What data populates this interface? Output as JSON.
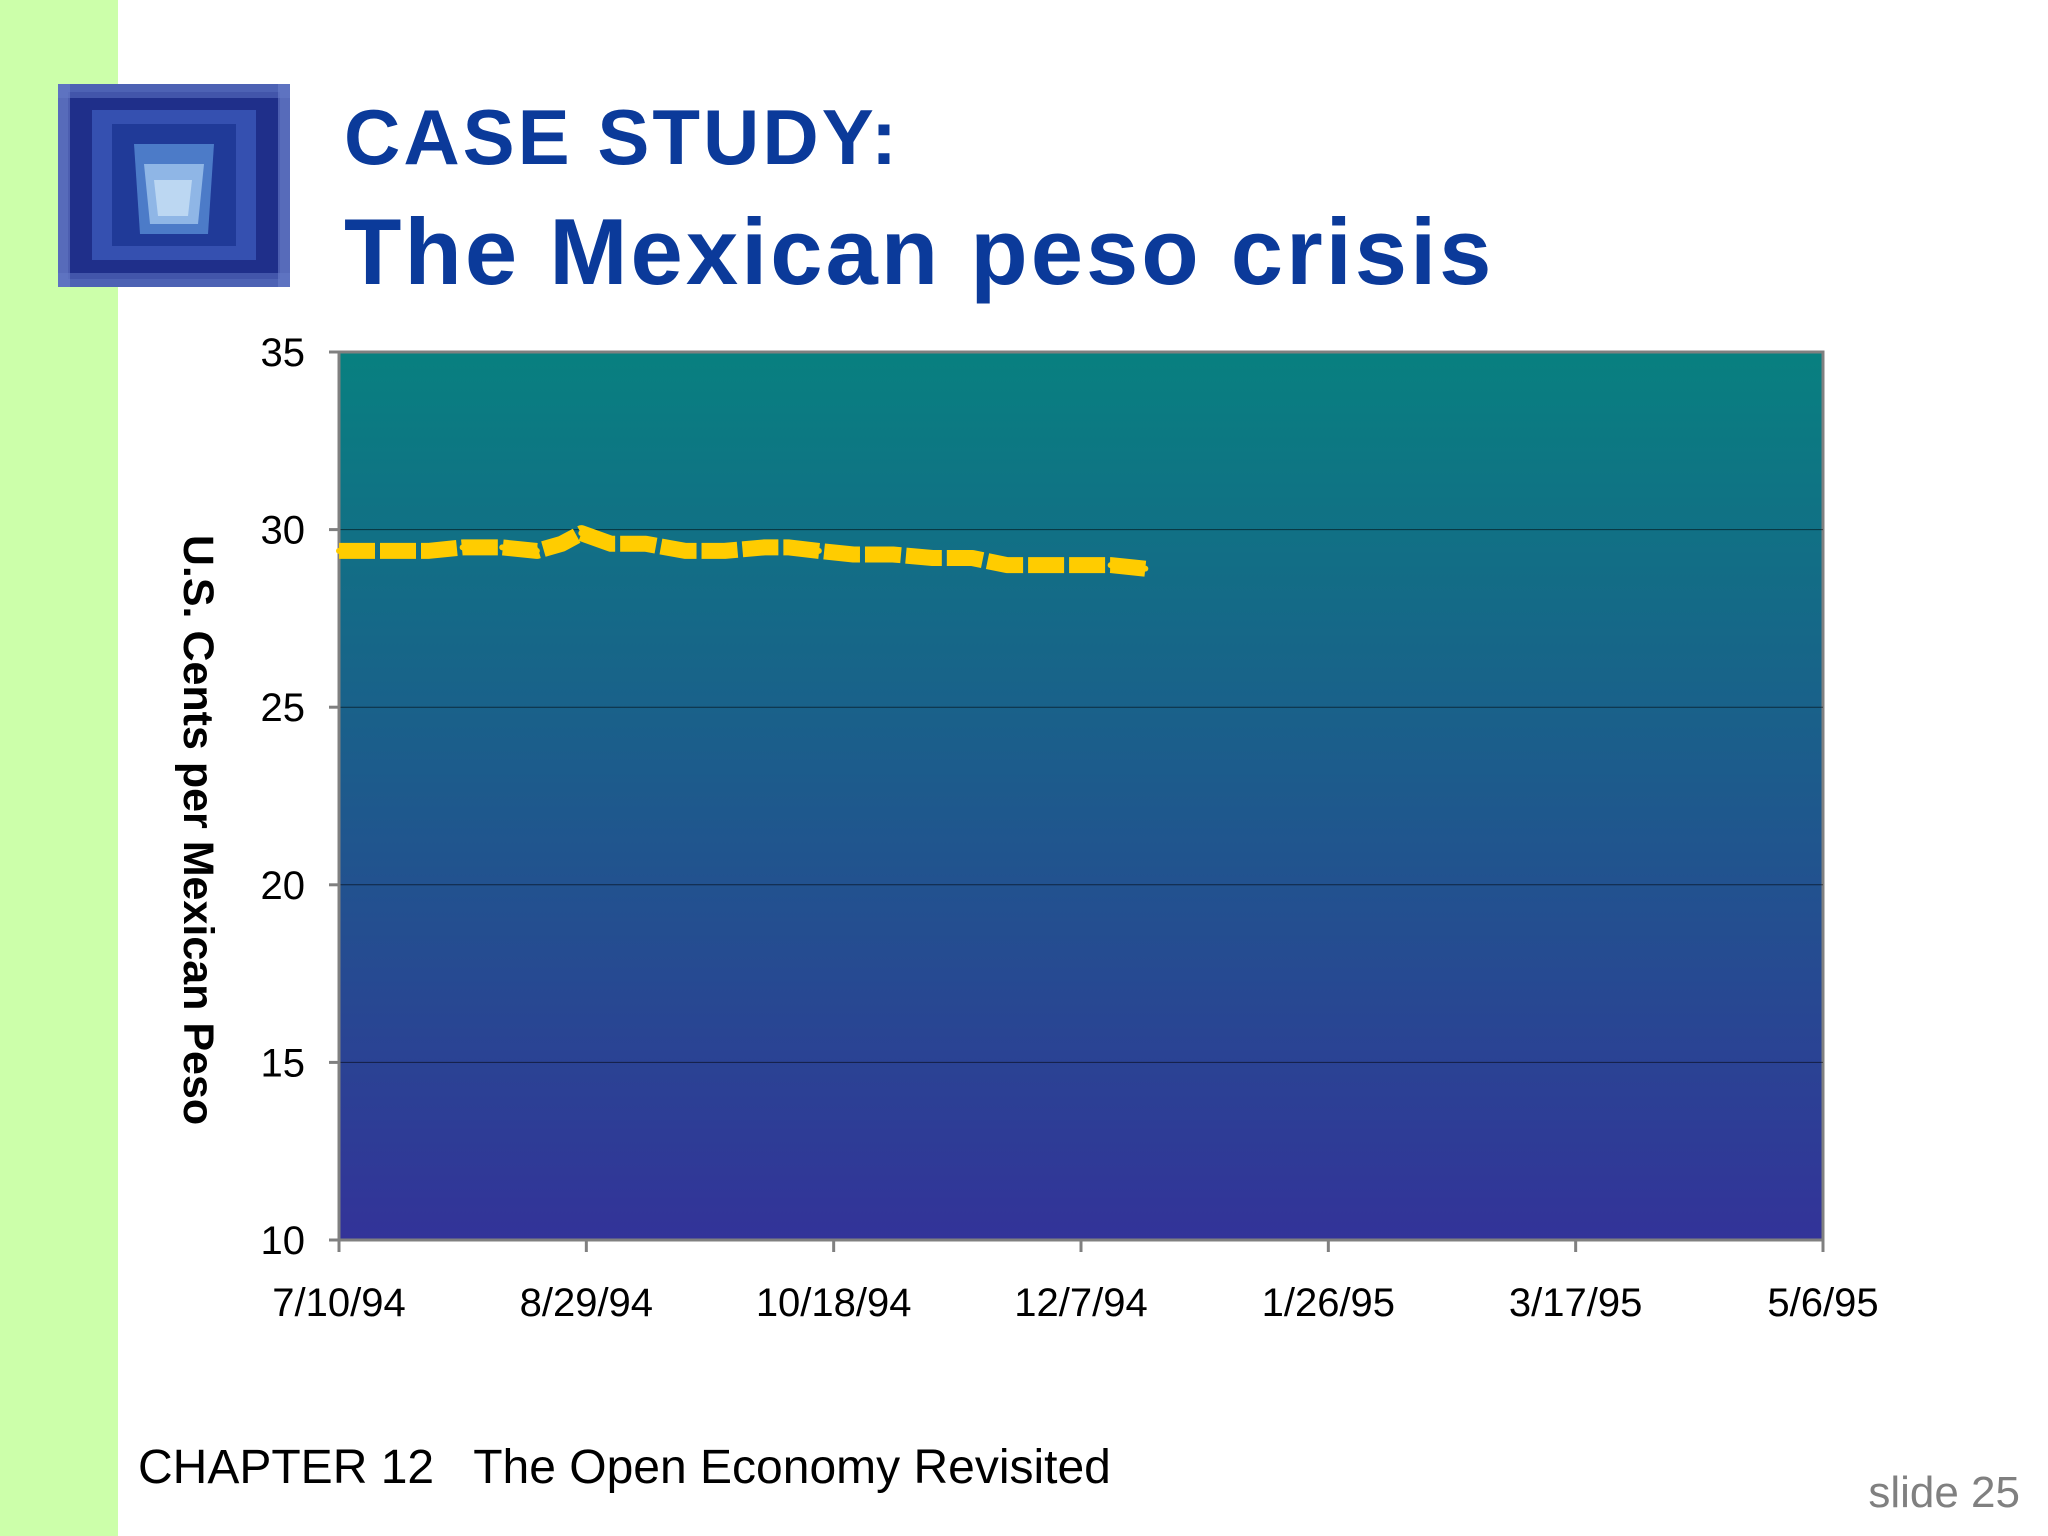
{
  "slide": {
    "title_line1": "CASE STUDY:",
    "title_line2": "The Mexican peso crisis",
    "footer_chapter": "CHAPTER 12   The Open Economy Revisited",
    "footer_slide": "slide 25"
  },
  "colors": {
    "title": "#0b3a9a",
    "left_strip": "#ccffaa",
    "plot_top": "#088080",
    "plot_bottom": "#333399",
    "series": "#ffcc00"
  },
  "chart_data": {
    "type": "line",
    "title": "",
    "xlabel": "",
    "ylabel": "U.S. Cents per Mexican Peso",
    "ylim": [
      10,
      35
    ],
    "yticks": [
      10,
      15,
      20,
      25,
      30,
      35
    ],
    "xlim": [
      "1994-07-10",
      "1995-05-06"
    ],
    "xtick_labels": [
      "7/10/94",
      "8/29/94",
      "10/18/94",
      "12/7/94",
      "1/26/95",
      "3/17/95",
      "5/6/95"
    ],
    "xtick_dates": [
      "1994-07-10",
      "1994-08-29",
      "1994-10-18",
      "1994-12-07",
      "1995-01-26",
      "1995-03-17",
      "1995-05-06"
    ],
    "grid": true,
    "legend": "none",
    "series": [
      {
        "x": [
          "1994-07-10",
          "1994-07-19",
          "1994-07-28",
          "1994-08-04",
          "1994-08-12",
          "1994-08-19",
          "1994-08-24",
          "1994-08-28",
          "1994-09-03",
          "1994-09-10",
          "1994-09-18",
          "1994-09-26",
          "1994-10-04",
          "1994-10-09",
          "1994-10-15",
          "1994-10-22",
          "1994-10-30",
          "1994-11-07",
          "1994-11-15",
          "1994-11-22",
          "1994-11-30",
          "1994-12-07",
          "1994-12-13",
          "1994-12-20"
        ],
        "y": [
          29.4,
          29.4,
          29.4,
          29.5,
          29.5,
          29.4,
          29.6,
          29.9,
          29.6,
          29.6,
          29.4,
          29.4,
          29.5,
          29.5,
          29.4,
          29.3,
          29.3,
          29.2,
          29.2,
          29.0,
          29.0,
          29.0,
          29.0,
          28.9
        ]
      }
    ]
  }
}
